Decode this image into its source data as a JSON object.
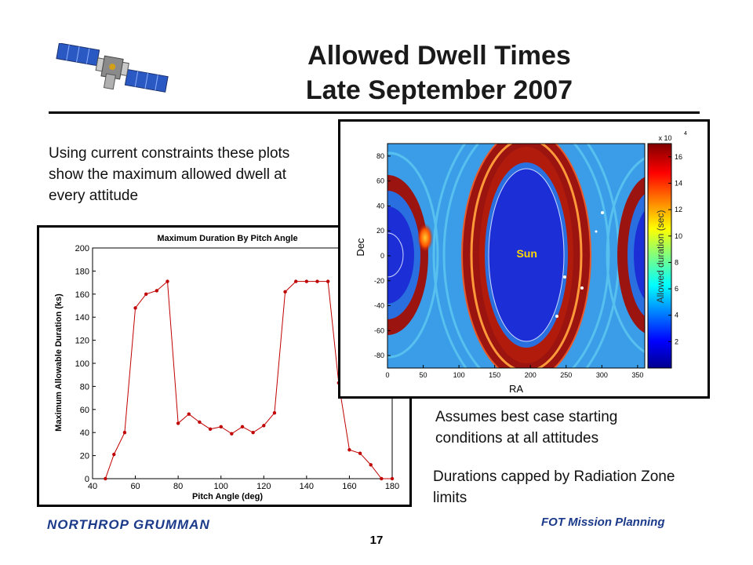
{
  "slide": {
    "title_line1": "Allowed Dwell Times",
    "title_line2": "Late September 2007",
    "description": "Using current constraints these plots show the maximum allowed dwell at every attitude",
    "note_best_case": "Assumes best case starting conditions at all attitudes",
    "note_radiation": "Durations capped by Radiation Zone limits",
    "footer_logo_text": "NORTHROP GRUMMAN",
    "footer_right": "FOT Mission Planning",
    "page_number": "17",
    "icons": [
      "satellite-icon",
      "northrop-grumman-logo"
    ]
  },
  "chart_data": [
    {
      "type": "line",
      "title": "Maximum Duration By Pitch Angle",
      "xlabel": "Pitch Angle (deg)",
      "ylabel": "Maximum Allowable Duration (ks)",
      "xlim": [
        40,
        180
      ],
      "ylim": [
        0,
        200
      ],
      "xticks": [
        40,
        60,
        80,
        100,
        120,
        140,
        160,
        180
      ],
      "yticks": [
        0,
        20,
        40,
        60,
        80,
        100,
        120,
        140,
        160,
        180,
        200
      ],
      "color": "#c00000",
      "x": [
        46,
        50,
        55,
        60,
        65,
        70,
        75,
        80,
        85,
        90,
        95,
        100,
        105,
        110,
        115,
        120,
        125,
        130,
        135,
        140,
        145,
        150,
        155,
        160,
        165,
        170,
        175,
        180
      ],
      "y": [
        0,
        21,
        40,
        148,
        160,
        163,
        171,
        48,
        56,
        49,
        43,
        45,
        39,
        45,
        40,
        46,
        57,
        162,
        171,
        171,
        171,
        171,
        83,
        25,
        22,
        12,
        0,
        0
      ],
      "grid": false,
      "legend": "none"
    },
    {
      "type": "heatmap",
      "xlabel": "RA",
      "ylabel": "Dec",
      "xlim": [
        0,
        360
      ],
      "ylim": [
        -90,
        90
      ],
      "xticks": [
        0,
        50,
        100,
        150,
        200,
        250,
        300,
        350
      ],
      "yticks": [
        80,
        60,
        40,
        20,
        0,
        -20,
        -40,
        -60,
        -80
      ],
      "annotation": "Sun",
      "sun_center": [
        195,
        2
      ],
      "colorbar": {
        "label": "Allowed duration (sec)",
        "multiplier": "x 10",
        "exponent": "4",
        "ticks": [
          2,
          4,
          6,
          8,
          10,
          12,
          14,
          16
        ],
        "range": [
          0,
          17
        ],
        "colormap": "jet"
      }
    }
  ]
}
